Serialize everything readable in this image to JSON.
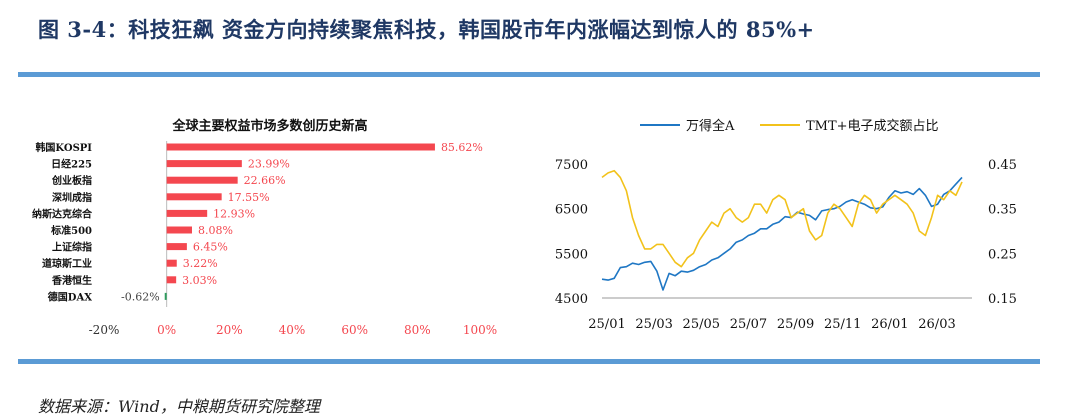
{
  "figure_title": "图 3-4：科技狂飙 资金方向持续聚焦科技，韩国股市年内涨幅达到惊人的 85%+",
  "source_note": "数据来源：Wind，中粮期货研究院整理",
  "colors": {
    "rule": "#5b9bd5",
    "bar_pos": "#f4474f",
    "bar_neg": "#2e9c5e",
    "line_a": "#1f77c4",
    "line_b": "#f2c21b"
  },
  "chart_data": [
    {
      "type": "bar",
      "orientation": "horizontal",
      "title": "全球主要权益市场多数创历史新高",
      "categories": [
        "韩国KOSPI",
        "日经225",
        "创业板指",
        "深圳成指",
        "纳斯达克综合",
        "标准500",
        "上证综指",
        "道琼斯工业",
        "香港恒生",
        "德国DAX"
      ],
      "values": [
        85.62,
        23.99,
        22.66,
        17.55,
        12.93,
        8.08,
        6.45,
        3.22,
        3.03,
        -0.62
      ],
      "value_labels": [
        "85.62%",
        "23.99%",
        "22.66%",
        "17.55%",
        "12.93%",
        "8.08%",
        "6.45%",
        "3.22%",
        "3.03%",
        "-0.62%"
      ],
      "xlim": [
        -20,
        100
      ],
      "xticks": [
        "-20%",
        "0%",
        "20%",
        "40%",
        "60%",
        "80%",
        "100%"
      ]
    },
    {
      "type": "line",
      "legend_position": "top",
      "x_ticks": [
        "25/01",
        "25/03",
        "25/05",
        "25/07",
        "25/09",
        "25/11",
        "26/01",
        "26/03"
      ],
      "y_left": {
        "lim": [
          4500,
          7500
        ],
        "ticks": [
          "4500",
          "5500",
          "6500",
          "7500"
        ]
      },
      "y_right": {
        "lim": [
          0.15,
          0.45
        ],
        "ticks": [
          "0.15",
          "0.25",
          "0.35",
          "0.45"
        ]
      },
      "series": [
        {
          "name": "万得全A",
          "axis": "left",
          "values": [
            4920,
            4900,
            4940,
            5180,
            5200,
            5280,
            5250,
            5300,
            5320,
            5100,
            4680,
            5050,
            5000,
            5100,
            5080,
            5120,
            5200,
            5250,
            5350,
            5400,
            5500,
            5600,
            5750,
            5800,
            5900,
            5950,
            6050,
            6050,
            6150,
            6200,
            6320,
            6300,
            6420,
            6380,
            6350,
            6250,
            6450,
            6480,
            6500,
            6550,
            6650,
            6700,
            6650,
            6600,
            6520,
            6500,
            6540,
            6750,
            6900,
            6850,
            6880,
            6820,
            6950,
            6800,
            6550,
            6600,
            6820,
            6900,
            7050,
            7200
          ]
        },
        {
          "name": "TMT+电子成交额占比",
          "axis": "right",
          "values": [
            0.42,
            0.43,
            0.435,
            0.42,
            0.39,
            0.33,
            0.29,
            0.26,
            0.26,
            0.27,
            0.27,
            0.25,
            0.23,
            0.22,
            0.24,
            0.25,
            0.28,
            0.3,
            0.32,
            0.31,
            0.34,
            0.35,
            0.33,
            0.32,
            0.33,
            0.36,
            0.36,
            0.34,
            0.37,
            0.38,
            0.37,
            0.33,
            0.34,
            0.35,
            0.3,
            0.28,
            0.29,
            0.34,
            0.36,
            0.35,
            0.33,
            0.31,
            0.36,
            0.38,
            0.37,
            0.34,
            0.36,
            0.37,
            0.38,
            0.37,
            0.36,
            0.34,
            0.3,
            0.29,
            0.33,
            0.38,
            0.37,
            0.39,
            0.38,
            0.41
          ]
        }
      ]
    }
  ]
}
